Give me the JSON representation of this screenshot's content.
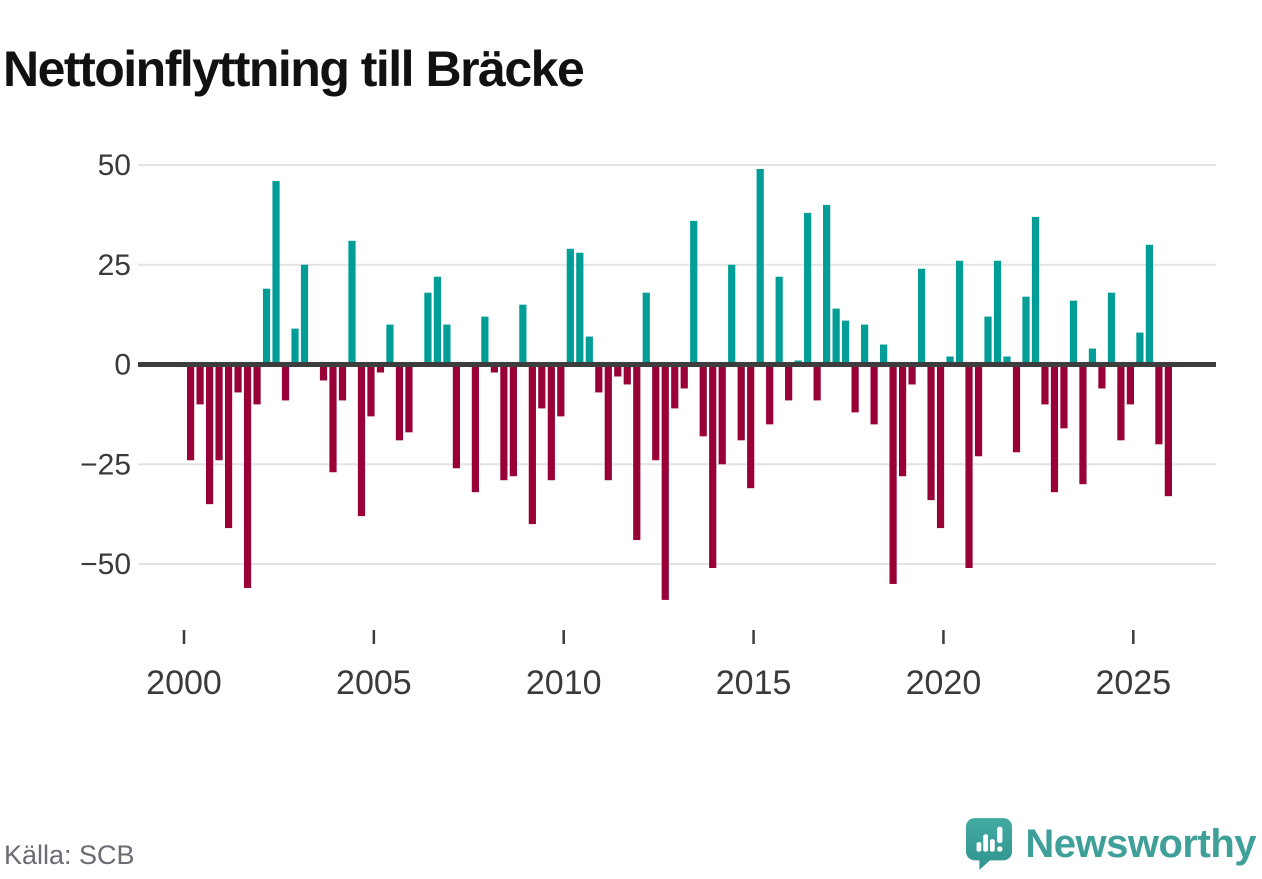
{
  "header": {
    "title": "Nettoinflyttning till Bräcke"
  },
  "footer": {
    "source_label": "Källa: SCB",
    "brand_name": "Newsworthy",
    "brand_icon": "newsworthy-speech-bubble-chart-icon"
  },
  "colors": {
    "positive_bar": "#009E96",
    "negative_bar": "#990038",
    "zero_axis": "#3d3d3d",
    "gridline": "#e4e4e4",
    "axis_label": "#3a3a3a",
    "title_text": "#111111",
    "source_text": "#6b6b74",
    "brand_teal": "#3fa09a"
  },
  "chart_data": {
    "type": "bar",
    "title": "Nettoinflyttning till Bräcke",
    "frequency": "quarterly",
    "period": "2000Q1–2025Q4",
    "start_year": 2000,
    "periods_per_year": 4,
    "grid": true,
    "legend": false,
    "ylim": [
      -62,
      52
    ],
    "y_ticks": [
      50,
      25,
      0,
      -25,
      -50
    ],
    "x_tick_labels": [
      "2000",
      "2005",
      "2010",
      "2015",
      "2020",
      "2025"
    ],
    "positive_color": "#009E96",
    "negative_color": "#990038",
    "values": [
      -24,
      -10,
      -35,
      -24,
      -41,
      -7,
      -56,
      -10,
      19,
      46,
      -9,
      9,
      25,
      0,
      -4,
      -27,
      -9,
      31,
      -38,
      -13,
      -2,
      10,
      -19,
      -17,
      0,
      18,
      22,
      10,
      -26,
      0,
      -32,
      12,
      -2,
      -29,
      -28,
      15,
      -40,
      -11,
      -29,
      -13,
      29,
      28,
      7,
      -7,
      -29,
      -3,
      -5,
      -44,
      18,
      -24,
      -59,
      -11,
      -6,
      36,
      -18,
      -51,
      -25,
      25,
      -19,
      -31,
      49,
      -15,
      22,
      -9,
      1,
      38,
      -9,
      40,
      14,
      11,
      -12,
      10,
      -15,
      5,
      -55,
      -28,
      -5,
      24,
      -34,
      -41,
      2,
      26,
      -51,
      -23,
      12,
      26,
      2,
      -22,
      17,
      37,
      -10,
      -32,
      -16,
      16,
      -30,
      4,
      -6,
      18,
      -19,
      -10,
      8,
      30,
      -20,
      -33
    ]
  }
}
